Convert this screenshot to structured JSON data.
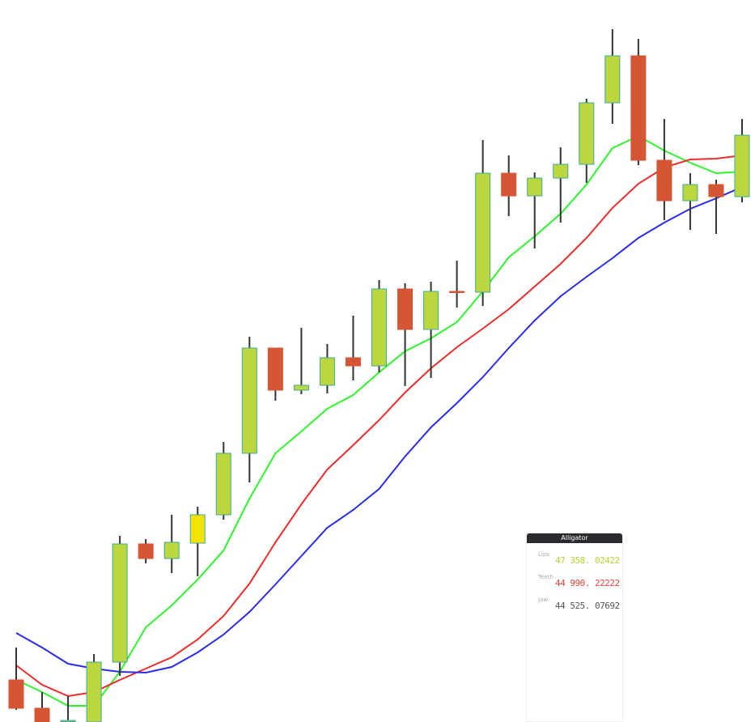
{
  "chart_data": {
    "type": "candlestick",
    "ylim": [
      0,
      892
    ],
    "candles": {
      "open": [
        52,
        17,
        2,
        0,
        74,
        220,
        202,
        221,
        256,
        332,
        462,
        410,
        416,
        450,
        440,
        535,
        485,
        532,
        531,
        678,
        650,
        672,
        689,
        765,
        823,
        694,
        644,
        664,
        649
      ],
      "high": [
        92,
        37,
        32,
        84,
        230,
        226,
        256,
        266,
        346,
        476,
        462,
        487,
        467,
        502,
        546,
        542,
        544,
        570,
        719,
        700,
        679,
        710,
        770,
        856,
        844,
        745,
        678,
        670,
        745
      ],
      "low": [
        15,
        0,
        0,
        0,
        57,
        196,
        184,
        180,
        250,
        296,
        397,
        405,
        406,
        422,
        432,
        415,
        425,
        512,
        514,
        625,
        585,
        617,
        666,
        739,
        688,
        620,
        608,
        603,
        642
      ],
      "close": [
        17,
        0,
        2,
        74,
        220,
        202,
        222,
        256,
        332,
        462,
        410,
        416,
        450,
        440,
        535,
        485,
        532,
        531,
        678,
        650,
        672,
        689,
        765,
        823,
        694,
        644,
        664,
        649,
        725
      ],
      "up_color": "#bad73e",
      "down_color": "#d45635",
      "outline_color": "#3fa9a0",
      "wick_color": "#333333",
      "highlight_index": 7,
      "highlight_color": "#f4e200"
    },
    "series": [
      {
        "name": "Lips",
        "color": "#2ef52e",
        "values": [
          52,
          37,
          20,
          20,
          62,
          117,
          144,
          176,
          212,
          276,
          332,
          359,
          387,
          404,
          432,
          458,
          474,
          494,
          532,
          574,
          600,
          628,
          664,
          709,
          724,
          706,
          691,
          678,
          680
        ]
      },
      {
        "name": "Teeth",
        "color": "#ee2b2b",
        "values": [
          70,
          46,
          32,
          37,
          52,
          66,
          80,
          102,
          131,
          171,
          222,
          269,
          312,
          342,
          373,
          407,
          437,
          463,
          486,
          510,
          538,
          566,
          598,
          635,
          665,
          685,
          695,
          696,
          700
        ]
      },
      {
        "name": "Jaw",
        "color": "#2b2bee",
        "values": [
          110,
          92,
          72,
          66,
          62,
          61,
          68,
          86,
          108,
          136,
          170,
          205,
          240,
          262,
          288,
          328,
          364,
          394,
          426,
          462,
          496,
          526,
          550,
          573,
          598,
          617,
          634,
          647,
          661
        ]
      }
    ]
  },
  "tooltip": {
    "title": "Alligator",
    "values": [
      "47 358. 02422",
      "44 990. 22222",
      "44 525. 07692"
    ],
    "value_colors": [
      "#b5d334",
      "#e8453c",
      "#555555"
    ]
  }
}
